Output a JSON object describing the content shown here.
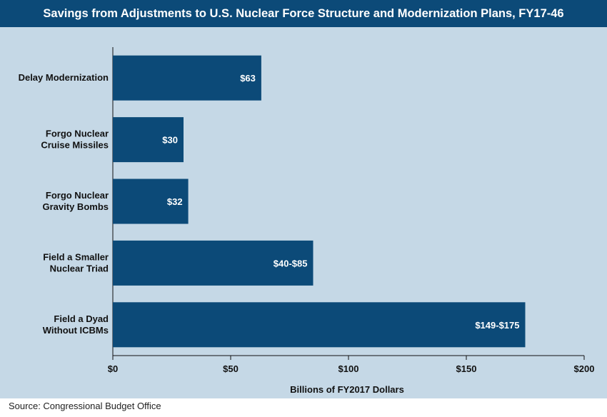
{
  "chart_data": {
    "type": "bar",
    "orientation": "horizontal",
    "title": "Savings from Adjustments to U.S. Nuclear Force Structure and Modernization Plans, FY17-46",
    "xlabel": "Billions of FY2017 Dollars",
    "ylabel": "",
    "xlim": [
      0,
      200
    ],
    "xticks": [
      0,
      50,
      100,
      150,
      200
    ],
    "xtick_labels": [
      "$0",
      "$50",
      "$100",
      "$150",
      "$200"
    ],
    "grid": false,
    "categories": [
      [
        "Delay Modernization"
      ],
      [
        "Forgo Nuclear",
        "Cruise Missiles"
      ],
      [
        "Forgo Nuclear",
        "Gravity Bombs"
      ],
      [
        "Field a Smaller",
        "Nuclear Triad"
      ],
      [
        "Field a Dyad",
        "Without ICBMs"
      ]
    ],
    "values": [
      63,
      30,
      32,
      85,
      175
    ],
    "ranges": [
      null,
      null,
      null,
      [
        40,
        85
      ],
      [
        149,
        175
      ]
    ],
    "data_labels": [
      "$63",
      "$30",
      "$32",
      "$40-$85",
      "$149-$175"
    ],
    "colors": {
      "bar": "#0c4a78",
      "title_bg": "#0c4a78",
      "plot_bg": "#c5d8e6"
    }
  },
  "source": "Source: Congressional Budget Office"
}
